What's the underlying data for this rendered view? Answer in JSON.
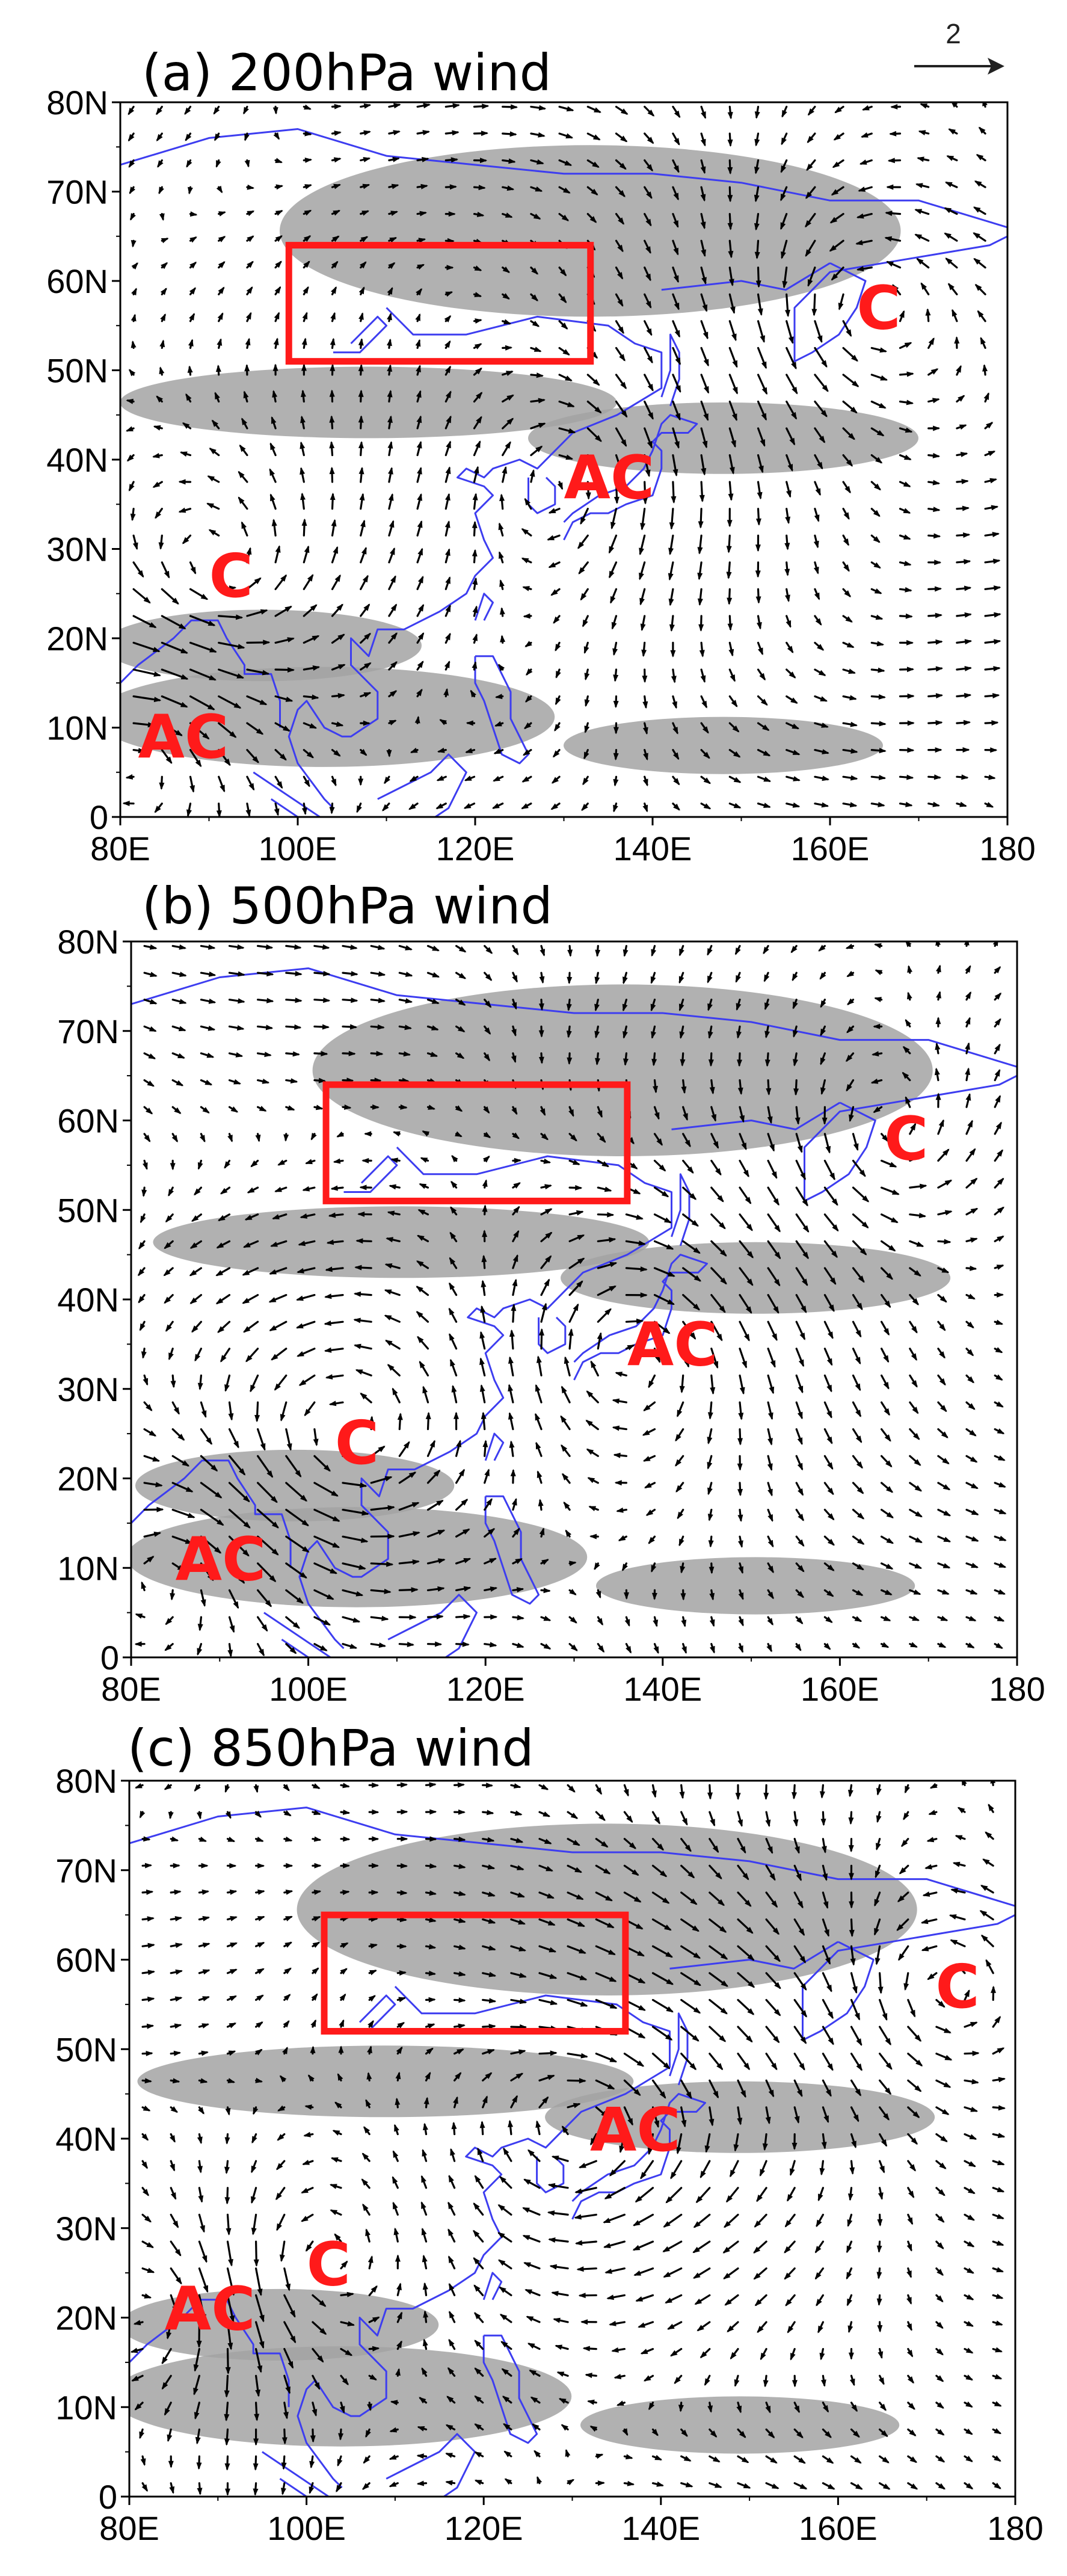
{
  "reference_vector": {
    "label": "2"
  },
  "lat_labels": [
    "0",
    "10N",
    "20N",
    "30N",
    "40N",
    "50N",
    "60N",
    "70N",
    "80N"
  ],
  "lon_labels": [
    "80E",
    "100E",
    "120E",
    "140E",
    "160E",
    "180"
  ],
  "colors": {
    "box": "#ff1a1a",
    "coast": "#3d3df0",
    "shade": "#a3a3a3",
    "label": "#ff1a1a"
  },
  "panels": [
    {
      "title": "(a) 200hPa wind",
      "box": {
        "lon": [
          99,
          133
        ],
        "lat": [
          51,
          64
        ]
      },
      "centers": [
        {
          "label": "C",
          "lon": 163,
          "lat": 57
        },
        {
          "label": "AC",
          "lon": 130,
          "lat": 38
        },
        {
          "label": "C",
          "lon": 90,
          "lat": 27
        },
        {
          "label": "AC",
          "lon": 82,
          "lat": 9
        }
      ]
    },
    {
      "title": "(b) 500hPa wind",
      "box": {
        "lon": [
          102,
          136
        ],
        "lat": [
          51,
          64
        ]
      },
      "centers": [
        {
          "label": "C",
          "lon": 165,
          "lat": 58
        },
        {
          "label": "AC",
          "lon": 136,
          "lat": 35
        },
        {
          "label": "C",
          "lon": 103,
          "lat": 24
        },
        {
          "label": "AC",
          "lon": 85,
          "lat": 11
        }
      ]
    },
    {
      "title": "(c) 850hPa wind",
      "box": {
        "lon": [
          102,
          136
        ],
        "lat": [
          52,
          65
        ]
      },
      "centers": [
        {
          "label": "C",
          "lon": 171,
          "lat": 57
        },
        {
          "label": "AC",
          "lon": 132,
          "lat": 41
        },
        {
          "label": "C",
          "lon": 100,
          "lat": 26
        },
        {
          "label": "AC",
          "lon": 84,
          "lat": 21
        }
      ]
    }
  ]
}
